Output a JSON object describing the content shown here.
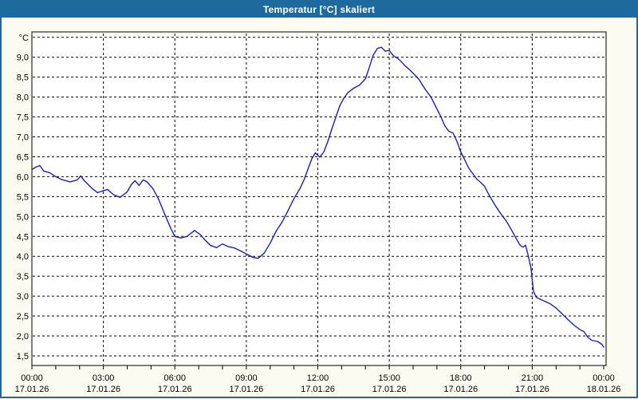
{
  "window": {
    "title": "Temperatur [°C] skaliert"
  },
  "colors": {
    "titlebar": "#1e6a9e",
    "window_border": "#1e6a9e",
    "window_bg": "#fbfbf1",
    "plot_bg": "#ffffff",
    "grid": "#000000",
    "axis_text": "#000000",
    "line": "#1e1eb4"
  },
  "chart_data": {
    "type": "line",
    "title": "Temperatur [°C] skaliert",
    "ylabel": "°C",
    "xlabel": "",
    "grid": true,
    "legend": "none",
    "y_axis": {
      "unit_label": "°C",
      "ticks": [
        {
          "value": 9.5,
          "label": "°C"
        },
        {
          "value": 9.0,
          "label": "9,0"
        },
        {
          "value": 8.5,
          "label": "8,5"
        },
        {
          "value": 8.0,
          "label": "8,0"
        },
        {
          "value": 7.5,
          "label": "7,5"
        },
        {
          "value": 7.0,
          "label": "7,0"
        },
        {
          "value": 6.5,
          "label": "6,5"
        },
        {
          "value": 6.0,
          "label": "6,0"
        },
        {
          "value": 5.5,
          "label": "5,5"
        },
        {
          "value": 5.0,
          "label": "5,0"
        },
        {
          "value": 4.5,
          "label": "4,5"
        },
        {
          "value": 4.0,
          "label": "4,0"
        },
        {
          "value": 3.5,
          "label": "3,5"
        },
        {
          "value": 3.0,
          "label": "3,0"
        },
        {
          "value": 2.5,
          "label": "2,5"
        },
        {
          "value": 2.0,
          "label": "2,0"
        },
        {
          "value": 1.5,
          "label": "1,5"
        }
      ]
    },
    "x_axis": {
      "span_hours": 24,
      "minor_tick_every_hours": 1,
      "major_ticks": [
        {
          "hour": 0,
          "time": "00:00",
          "date": "17.01.26"
        },
        {
          "hour": 3,
          "time": "03:00",
          "date": "17.01.26"
        },
        {
          "hour": 6,
          "time": "06:00",
          "date": "17.01.26"
        },
        {
          "hour": 9,
          "time": "09:00",
          "date": "17.01.26"
        },
        {
          "hour": 12,
          "time": "12:00",
          "date": "17.01.26"
        },
        {
          "hour": 15,
          "time": "15:00",
          "date": "17.01.26"
        },
        {
          "hour": 18,
          "time": "18:00",
          "date": "17.01.26"
        },
        {
          "hour": 21,
          "time": "21:00",
          "date": "17.01.26"
        },
        {
          "hour": 24,
          "time": "00:00",
          "date": "18.01.26"
        }
      ]
    },
    "series": [
      {
        "name": "Temperatur",
        "points": [
          [
            0.0,
            6.18
          ],
          [
            0.17,
            6.24
          ],
          [
            0.33,
            6.28
          ],
          [
            0.5,
            6.14
          ],
          [
            0.75,
            6.1
          ],
          [
            1.0,
            6.0
          ],
          [
            1.25,
            5.93
          ],
          [
            1.6,
            5.87
          ],
          [
            1.9,
            5.92
          ],
          [
            2.05,
            6.02
          ],
          [
            2.2,
            5.9
          ],
          [
            2.5,
            5.72
          ],
          [
            2.75,
            5.6
          ],
          [
            3.0,
            5.65
          ],
          [
            3.17,
            5.68
          ],
          [
            3.42,
            5.55
          ],
          [
            3.7,
            5.48
          ],
          [
            4.0,
            5.62
          ],
          [
            4.17,
            5.8
          ],
          [
            4.33,
            5.9
          ],
          [
            4.5,
            5.78
          ],
          [
            4.67,
            5.92
          ],
          [
            4.83,
            5.87
          ],
          [
            5.08,
            5.7
          ],
          [
            5.33,
            5.42
          ],
          [
            5.58,
            5.05
          ],
          [
            5.83,
            4.7
          ],
          [
            6.0,
            4.5
          ],
          [
            6.25,
            4.46
          ],
          [
            6.5,
            4.5
          ],
          [
            6.83,
            4.65
          ],
          [
            7.08,
            4.54
          ],
          [
            7.25,
            4.42
          ],
          [
            7.5,
            4.27
          ],
          [
            7.75,
            4.22
          ],
          [
            8.0,
            4.31
          ],
          [
            8.25,
            4.24
          ],
          [
            8.5,
            4.21
          ],
          [
            8.75,
            4.14
          ],
          [
            9.0,
            4.06
          ],
          [
            9.3,
            3.97
          ],
          [
            9.5,
            3.95
          ],
          [
            9.75,
            4.08
          ],
          [
            10.0,
            4.33
          ],
          [
            10.25,
            4.63
          ],
          [
            10.5,
            4.86
          ],
          [
            10.75,
            5.15
          ],
          [
            11.0,
            5.45
          ],
          [
            11.25,
            5.7
          ],
          [
            11.42,
            5.92
          ],
          [
            11.58,
            6.18
          ],
          [
            11.75,
            6.45
          ],
          [
            11.9,
            6.6
          ],
          [
            12.08,
            6.49
          ],
          [
            12.25,
            6.62
          ],
          [
            12.42,
            6.88
          ],
          [
            12.58,
            7.18
          ],
          [
            12.75,
            7.48
          ],
          [
            12.92,
            7.78
          ],
          [
            13.08,
            7.96
          ],
          [
            13.25,
            8.1
          ],
          [
            13.5,
            8.22
          ],
          [
            13.75,
            8.3
          ],
          [
            14.0,
            8.46
          ],
          [
            14.17,
            8.76
          ],
          [
            14.33,
            9.06
          ],
          [
            14.5,
            9.22
          ],
          [
            14.67,
            9.25
          ],
          [
            14.83,
            9.15
          ],
          [
            15.0,
            9.17
          ],
          [
            15.17,
            9.04
          ],
          [
            15.42,
            8.94
          ],
          [
            15.67,
            8.78
          ],
          [
            15.83,
            8.7
          ],
          [
            16.0,
            8.6
          ],
          [
            16.25,
            8.44
          ],
          [
            16.5,
            8.2
          ],
          [
            16.75,
            8.0
          ],
          [
            17.0,
            7.7
          ],
          [
            17.17,
            7.5
          ],
          [
            17.33,
            7.28
          ],
          [
            17.5,
            7.14
          ],
          [
            17.67,
            7.1
          ],
          [
            17.83,
            6.9
          ],
          [
            18.0,
            6.62
          ],
          [
            18.17,
            6.42
          ],
          [
            18.33,
            6.22
          ],
          [
            18.5,
            6.08
          ],
          [
            18.67,
            5.94
          ],
          [
            18.83,
            5.86
          ],
          [
            19.0,
            5.76
          ],
          [
            19.17,
            5.56
          ],
          [
            19.42,
            5.3
          ],
          [
            19.67,
            5.08
          ],
          [
            19.92,
            4.88
          ],
          [
            20.17,
            4.62
          ],
          [
            20.33,
            4.44
          ],
          [
            20.5,
            4.27
          ],
          [
            20.62,
            4.23
          ],
          [
            20.72,
            4.28
          ],
          [
            20.83,
            4.02
          ],
          [
            20.95,
            3.7
          ],
          [
            21.05,
            3.12
          ],
          [
            21.17,
            2.97
          ],
          [
            21.42,
            2.9
          ],
          [
            21.75,
            2.81
          ],
          [
            22.0,
            2.7
          ],
          [
            22.25,
            2.56
          ],
          [
            22.5,
            2.41
          ],
          [
            22.75,
            2.27
          ],
          [
            23.0,
            2.16
          ],
          [
            23.17,
            2.11
          ],
          [
            23.33,
            1.97
          ],
          [
            23.5,
            1.89
          ],
          [
            23.75,
            1.86
          ],
          [
            23.92,
            1.79
          ],
          [
            24.0,
            1.72
          ]
        ]
      }
    ]
  }
}
